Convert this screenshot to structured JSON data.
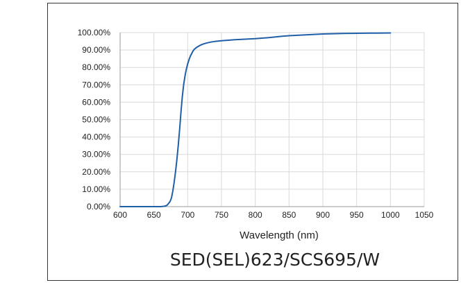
{
  "chart_data": {
    "type": "line",
    "title": "SED(SEL)623/SCS695/W",
    "xlabel": "Wavelength (nm)",
    "ylabel": "",
    "xlim": [
      600,
      1050
    ],
    "ylim": [
      0,
      100
    ],
    "x_ticks": [
      600,
      650,
      700,
      750,
      800,
      850,
      900,
      950,
      1000,
      1050
    ],
    "y_ticks": [
      0,
      10,
      20,
      30,
      40,
      50,
      60,
      70,
      80,
      90,
      100
    ],
    "x_tick_labels": [
      "600",
      "650",
      "700",
      "750",
      "800",
      "850",
      "900",
      "950",
      "1000",
      "1050"
    ],
    "y_tick_labels": [
      "0.00%",
      "10.00%",
      "20.00%",
      "30.00%",
      "40.00%",
      "50.00%",
      "60.00%",
      "70.00%",
      "80.00%",
      "90.00%",
      "100.00%"
    ],
    "grid": true,
    "legend": "none",
    "series": [
      {
        "color": "#1f5fa8",
        "x": [
          598,
          620,
          640,
          660,
          665,
          668,
          670,
          672,
          674,
          676,
          678,
          680,
          682,
          684,
          686,
          688,
          690,
          692,
          694,
          696,
          698,
          700,
          702,
          704,
          706,
          708,
          710,
          714,
          718,
          722,
          726,
          730,
          735,
          740,
          750,
          760,
          770,
          780,
          790,
          800,
          810,
          820,
          830,
          840,
          850,
          860,
          870,
          880,
          890,
          900,
          910,
          920,
          930,
          940,
          950,
          960,
          970,
          980,
          990,
          1000
        ],
        "y": [
          0,
          0,
          0,
          0,
          0.2,
          0.5,
          1,
          2,
          3,
          5,
          9,
          14,
          20,
          27,
          35,
          44,
          54,
          63,
          70,
          75,
          79,
          82,
          84.5,
          86.5,
          88,
          89.5,
          90.5,
          91.7,
          92.6,
          93.3,
          93.8,
          94.2,
          94.6,
          94.9,
          95.3,
          95.6,
          95.9,
          96.1,
          96.3,
          96.5,
          96.8,
          97.1,
          97.5,
          97.9,
          98.2,
          98.4,
          98.6,
          98.8,
          99.0,
          99.2,
          99.3,
          99.4,
          99.5,
          99.55,
          99.6,
          99.65,
          99.7,
          99.7,
          99.75,
          99.8
        ]
      }
    ]
  }
}
